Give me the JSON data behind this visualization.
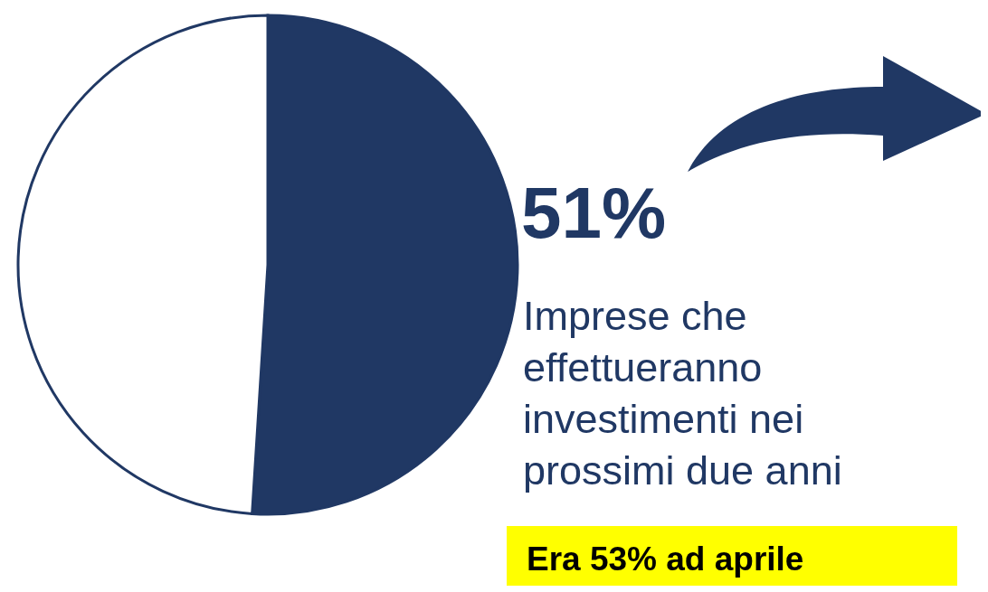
{
  "chart_data": {
    "type": "pie",
    "categories": [
      null,
      null
    ],
    "values": [
      51,
      49
    ],
    "colors": [
      "#203864",
      "#ffffff"
    ],
    "value_labels": [
      "51%",
      null
    ],
    "annotations": [
      "Imprese che effettueranno investimenti nei prossimi due anni",
      "Era 53% ad aprile"
    ]
  }
}
